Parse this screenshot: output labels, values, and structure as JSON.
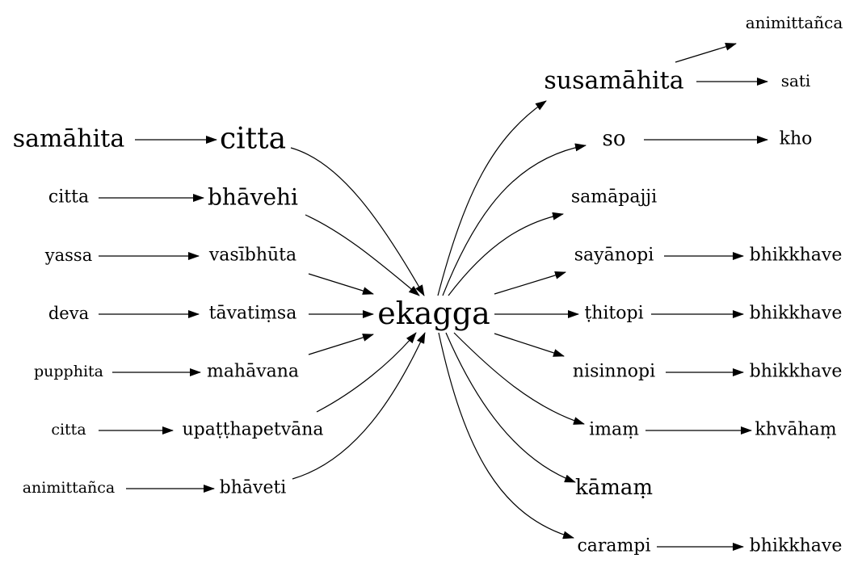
{
  "diagram": {
    "type": "word-association-graph",
    "colors": {
      "background": "#ffffff",
      "ink": "#000000"
    },
    "center": {
      "id": "ekagga",
      "label": "ekagga"
    },
    "nodes": [
      {
        "id": "samahita_l",
        "label": "samāhita"
      },
      {
        "id": "citta_big",
        "label": "citta"
      },
      {
        "id": "citta_l1",
        "label": "citta"
      },
      {
        "id": "bhavehi",
        "label": "bhāvehi"
      },
      {
        "id": "yassa",
        "label": "yassa"
      },
      {
        "id": "vasibhuta",
        "label": "vasībhūta"
      },
      {
        "id": "deva",
        "label": "deva"
      },
      {
        "id": "tavatimsa",
        "label": "tāvatiṃsa"
      },
      {
        "id": "pupphita",
        "label": "pupphita"
      },
      {
        "id": "mahavana",
        "label": "mahāvana"
      },
      {
        "id": "citta_l2",
        "label": "citta"
      },
      {
        "id": "upatthapetvana",
        "label": "upaṭṭhapetvāna"
      },
      {
        "id": "animittanca_l",
        "label": "animittañca"
      },
      {
        "id": "bhaveti",
        "label": "bhāveti"
      },
      {
        "id": "ekagga",
        "label": "ekagga"
      },
      {
        "id": "animittanca_r",
        "label": "animittañca"
      },
      {
        "id": "susamahita",
        "label": "susamāhita"
      },
      {
        "id": "sati",
        "label": "sati"
      },
      {
        "id": "so",
        "label": "so"
      },
      {
        "id": "kho",
        "label": "kho"
      },
      {
        "id": "samapajji",
        "label": "samāpajji"
      },
      {
        "id": "sayanopi",
        "label": "sayānopi"
      },
      {
        "id": "bhikkhave_1",
        "label": "bhikkhave"
      },
      {
        "id": "thitopi",
        "label": "ṭhitopi"
      },
      {
        "id": "bhikkhave_2",
        "label": "bhikkhave"
      },
      {
        "id": "nisinnopi",
        "label": "nisinnopi"
      },
      {
        "id": "bhikkhave_3",
        "label": "bhikkhave"
      },
      {
        "id": "imam",
        "label": "imaṃ"
      },
      {
        "id": "khvaham",
        "label": "khvāhaṃ"
      },
      {
        "id": "kamam",
        "label": "kāmaṃ"
      },
      {
        "id": "carampi",
        "label": "carampi"
      },
      {
        "id": "bhikkhave_4",
        "label": "bhikkhave"
      }
    ],
    "edges": [
      {
        "from": "samahita_l",
        "to": "citta_big"
      },
      {
        "from": "citta_l1",
        "to": "bhavehi"
      },
      {
        "from": "yassa",
        "to": "vasibhuta"
      },
      {
        "from": "deva",
        "to": "tavatimsa"
      },
      {
        "from": "pupphita",
        "to": "mahavana"
      },
      {
        "from": "citta_l2",
        "to": "upatthapetvana"
      },
      {
        "from": "animittanca_l",
        "to": "bhaveti"
      },
      {
        "from": "citta_big",
        "to": "ekagga"
      },
      {
        "from": "bhavehi",
        "to": "ekagga"
      },
      {
        "from": "vasibhuta",
        "to": "ekagga"
      },
      {
        "from": "tavatimsa",
        "to": "ekagga"
      },
      {
        "from": "mahavana",
        "to": "ekagga"
      },
      {
        "from": "upatthapetvana",
        "to": "ekagga"
      },
      {
        "from": "bhaveti",
        "to": "ekagga"
      },
      {
        "from": "ekagga",
        "to": "susamahita"
      },
      {
        "from": "ekagga",
        "to": "so"
      },
      {
        "from": "ekagga",
        "to": "samapajji"
      },
      {
        "from": "ekagga",
        "to": "sayanopi"
      },
      {
        "from": "ekagga",
        "to": "thitopi"
      },
      {
        "from": "ekagga",
        "to": "nisinnopi"
      },
      {
        "from": "ekagga",
        "to": "imam"
      },
      {
        "from": "ekagga",
        "to": "kamam"
      },
      {
        "from": "ekagga",
        "to": "carampi"
      },
      {
        "from": "susamahita",
        "to": "animittanca_r"
      },
      {
        "from": "susamahita",
        "to": "sati"
      },
      {
        "from": "so",
        "to": "kho"
      },
      {
        "from": "sayanopi",
        "to": "bhikkhave_1"
      },
      {
        "from": "thitopi",
        "to": "bhikkhave_2"
      },
      {
        "from": "nisinnopi",
        "to": "bhikkhave_3"
      },
      {
        "from": "imam",
        "to": "khvaham"
      },
      {
        "from": "carampi",
        "to": "bhikkhave_4"
      }
    ]
  }
}
